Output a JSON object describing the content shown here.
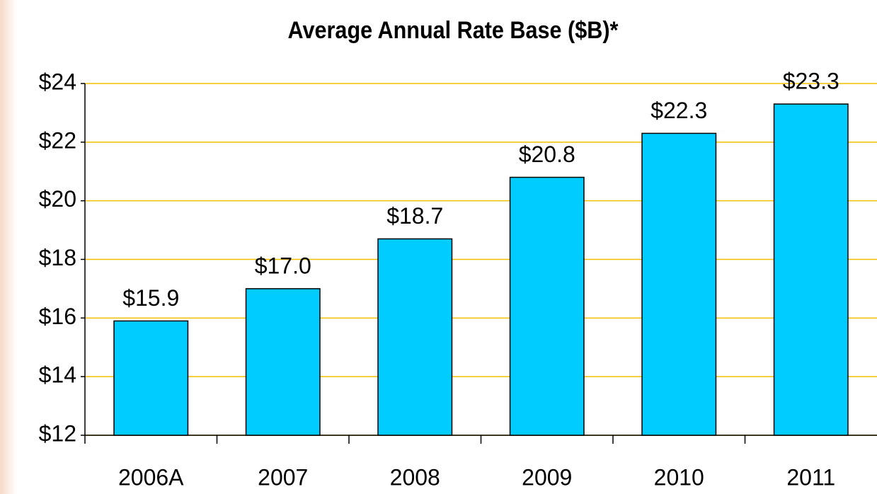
{
  "chart_data": {
    "type": "bar",
    "title": "Average Annual Rate Base ($B)*",
    "categories": [
      "2006A",
      "2007",
      "2008",
      "2009",
      "2010",
      "2011"
    ],
    "values": [
      15.9,
      17.0,
      18.7,
      20.8,
      22.3,
      23.3
    ],
    "value_labels": [
      "$15.9",
      "$17.0",
      "$18.7",
      "$20.8",
      "$22.3",
      "$23.3"
    ],
    "color": "#00ccff",
    "ylim": [
      12,
      24
    ],
    "yticks": [
      {
        "value": 12,
        "label": "$12"
      },
      {
        "value": 14,
        "label": "$14"
      },
      {
        "value": 16,
        "label": "$16"
      },
      {
        "value": 18,
        "label": "$18"
      },
      {
        "value": 20,
        "label": "$20"
      },
      {
        "value": 22,
        "label": "$22"
      },
      {
        "value": 24,
        "label": "$24"
      }
    ],
    "grid": true
  }
}
